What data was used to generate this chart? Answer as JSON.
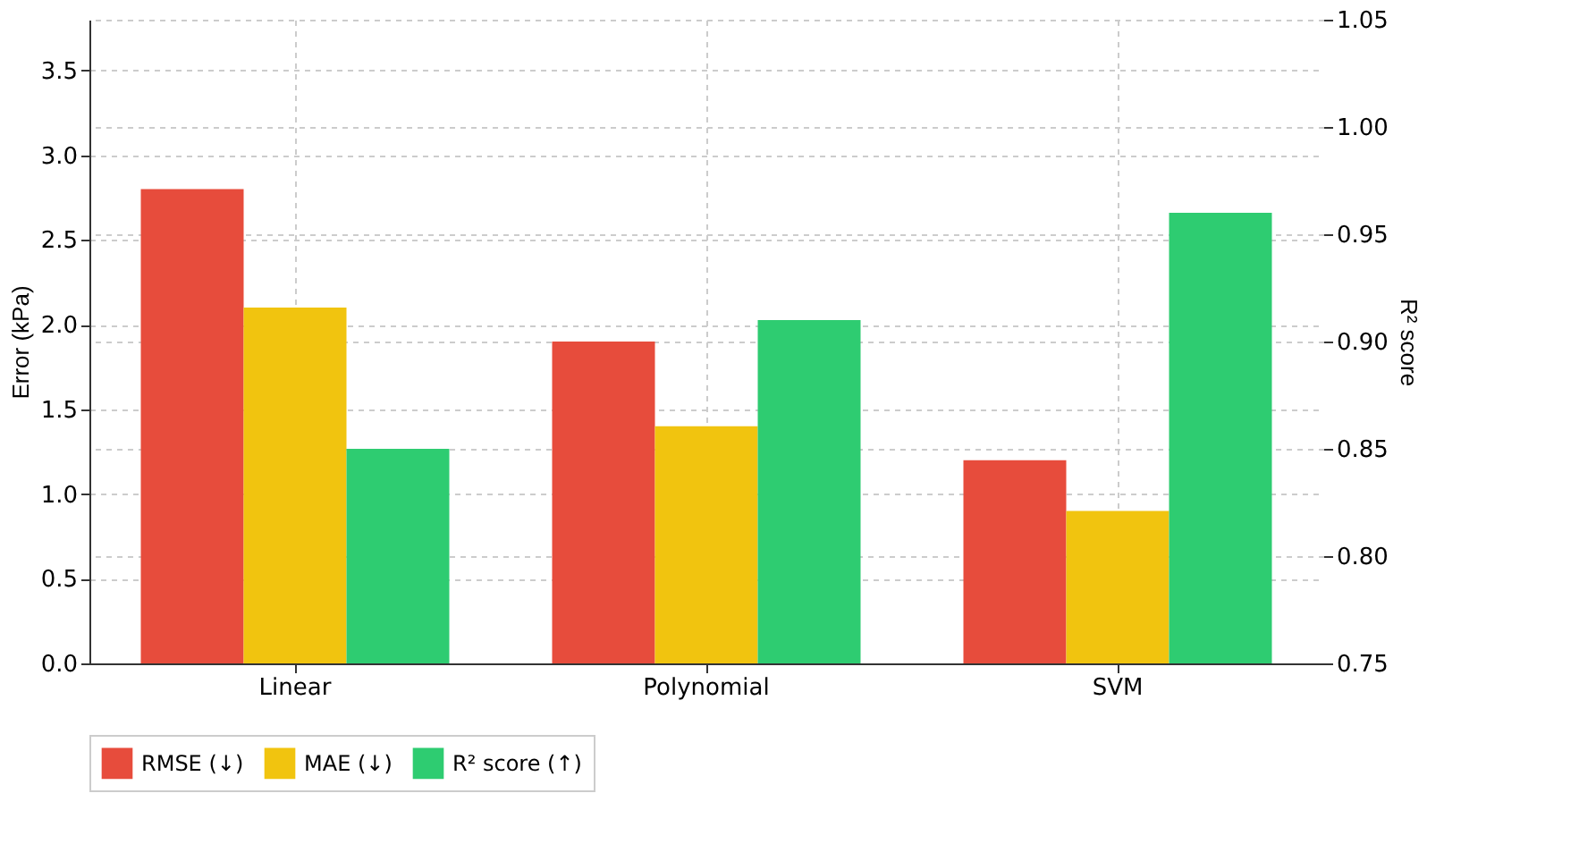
{
  "chart_data": {
    "type": "bar",
    "categories": [
      "Linear",
      "Polynomial",
      "SVM"
    ],
    "series": [
      {
        "name": "RMSE (↓)",
        "color": "#e74c3c",
        "values": [
          2.8,
          1.9,
          1.2
        ]
      },
      {
        "name": "MAE (↓)",
        "color": "#f1c40f",
        "values": [
          2.1,
          1.4,
          0.9
        ]
      },
      {
        "name": "R² score (↑)",
        "color": "#2ecc71",
        "values": [
          0.85,
          0.91,
          0.96
        ],
        "axis": "y2"
      }
    ],
    "ylabel": "Error (kPa)",
    "y2label": "R² score",
    "ylim": [
      0,
      3.8
    ],
    "yticks": [
      {
        "value": 0,
        "label": "0.0"
      },
      0.5,
      {
        "value": 1,
        "label": "1.0"
      },
      1.5,
      {
        "value": 2,
        "label": "2.0"
      },
      2.5,
      {
        "value": 3,
        "label": "3.0"
      },
      3.5
    ],
    "y2lim": [
      0.75,
      1.05
    ],
    "y2ticks": [
      0.75,
      {
        "value": 0.8,
        "label": "0.80"
      },
      0.85,
      {
        "value": 0.9,
        "label": "0.90"
      },
      0.95,
      {
        "value": 1,
        "label": "1.00"
      },
      1.05
    ],
    "grid": true,
    "legend": "bottom"
  }
}
